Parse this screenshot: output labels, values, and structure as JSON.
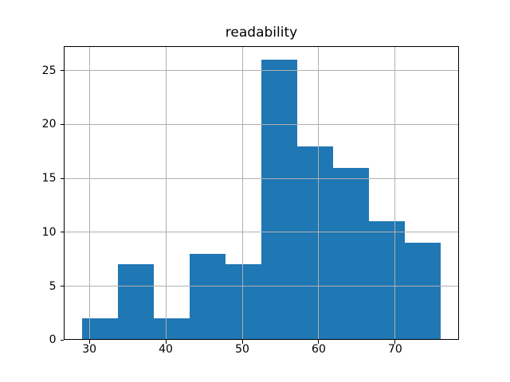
{
  "chart_data": {
    "type": "bar",
    "style": "histogram",
    "title": "readability",
    "bin_edges": [
      29.0,
      33.7,
      38.4,
      43.1,
      47.8,
      52.5,
      57.2,
      61.9,
      66.6,
      71.3,
      76.0
    ],
    "values": [
      2,
      7,
      2,
      8,
      7,
      26,
      18,
      16,
      11,
      9
    ],
    "xtick_labels": [
      "30",
      "40",
      "50",
      "60",
      "70"
    ],
    "xtick_values": [
      30,
      40,
      50,
      60,
      70
    ],
    "ytick_labels": [
      "0",
      "5",
      "10",
      "15",
      "20",
      "25"
    ],
    "ytick_values": [
      0,
      5,
      10,
      15,
      20,
      25
    ],
    "xlim": [
      26.65,
      78.35
    ],
    "ylim": [
      0,
      27.3
    ],
    "grid": true,
    "grid_over_bars": true,
    "legend": null,
    "xlabel": "",
    "ylabel": "",
    "colors": {
      "bar": "#1f77b4",
      "grid": "#b0b0b0",
      "spine": "#000000",
      "text": "#000000",
      "background": "#ffffff"
    }
  }
}
